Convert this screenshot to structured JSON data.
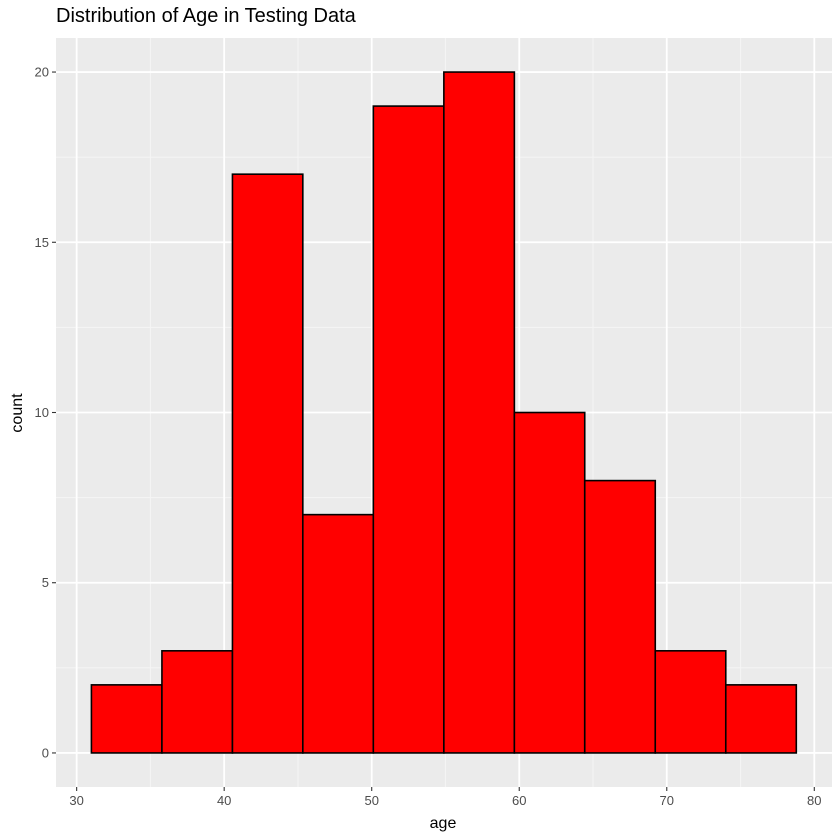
{
  "chart_data": {
    "type": "bar",
    "subtype": "histogram",
    "title": "Distribution of Age in Testing Data",
    "xlabel": "age",
    "ylabel": "count",
    "bins": [
      {
        "x0": 31.0,
        "x1": 35.78,
        "count": 2
      },
      {
        "x0": 35.78,
        "x1": 40.56,
        "count": 3
      },
      {
        "x0": 40.56,
        "x1": 45.33,
        "count": 17
      },
      {
        "x0": 45.33,
        "x1": 50.11,
        "count": 7
      },
      {
        "x0": 50.11,
        "x1": 54.89,
        "count": 19
      },
      {
        "x0": 54.89,
        "x1": 59.67,
        "count": 20
      },
      {
        "x0": 59.67,
        "x1": 64.44,
        "count": 10
      },
      {
        "x0": 64.44,
        "x1": 69.22,
        "count": 8
      },
      {
        "x0": 69.22,
        "x1": 74.0,
        "count": 3
      },
      {
        "x0": 74.0,
        "x1": 78.78,
        "count": 2
      }
    ],
    "xlim": [
      28.6,
      81.2
    ],
    "ylim": [
      -1.0,
      21.0
    ],
    "xticks": [
      30,
      40,
      50,
      60,
      70,
      80
    ],
    "yticks": [
      0,
      5,
      10,
      15,
      20
    ],
    "grid": true,
    "colors": {
      "bar_fill": "#ff0000",
      "bar_stroke": "#000000",
      "panel_background": "#ebebeb",
      "grid_major": "#ffffff",
      "grid_minor": "#f5f5f5",
      "tick_text": "#4d4d4d"
    }
  }
}
